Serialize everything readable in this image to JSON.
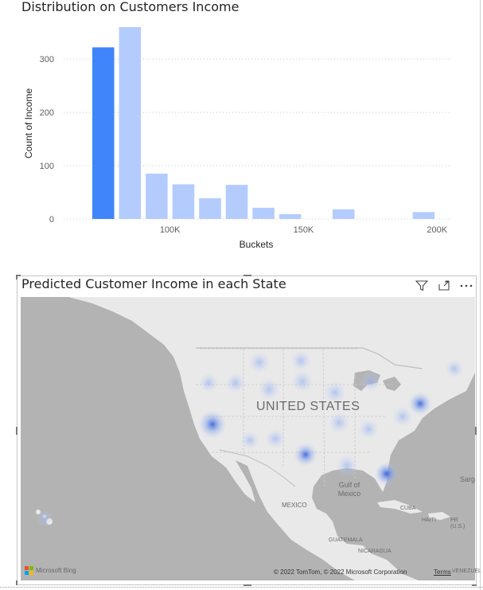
{
  "histogram": {
    "title": "Distribution on Customers Income",
    "xlabel": "Buckets",
    "ylabel": "Count of Income"
  },
  "chart_data": {
    "type": "bar",
    "title": "Distribution on Customers Income",
    "xlabel": "Buckets",
    "ylabel": "Count of Income",
    "x_start": 70000,
    "x_end": 205000,
    "bucket_width": 10000,
    "bins": [
      {
        "start": 70000,
        "value": 322,
        "highlighted": true
      },
      {
        "start": 80000,
        "value": 360,
        "highlighted": false
      },
      {
        "start": 90000,
        "value": 85,
        "highlighted": false
      },
      {
        "start": 100000,
        "value": 65,
        "highlighted": false
      },
      {
        "start": 110000,
        "value": 39,
        "highlighted": false
      },
      {
        "start": 120000,
        "value": 64,
        "highlighted": false
      },
      {
        "start": 130000,
        "value": 21,
        "highlighted": false
      },
      {
        "start": 140000,
        "value": 9,
        "highlighted": false
      },
      {
        "start": 160000,
        "value": 18,
        "highlighted": false
      },
      {
        "start": 190000,
        "value": 13,
        "highlighted": false
      }
    ],
    "yticks": [
      0,
      100,
      200,
      300
    ],
    "yticklabels": [
      "0",
      "100",
      "200",
      "300"
    ],
    "xticks": [
      {
        "value": 100000,
        "label": "100K"
      },
      {
        "value": 150000,
        "label": "150K"
      },
      {
        "value": 200000,
        "label": "200K"
      }
    ],
    "ylim": [
      0,
      360
    ],
    "grid": true,
    "colors": {
      "highlight": "#4185fb",
      "normal": "#b4ccfd"
    }
  },
  "map": {
    "title": "Predicted Customer Income in each State",
    "labels": {
      "country": "UNITED STATES",
      "gulf": "Gulf of Mexico",
      "mexico": "MEXICO",
      "cuba": "CUBA",
      "haiti": "HAITI",
      "pr": "PR (U.S.)",
      "guatemala": "GUATEMALA",
      "nicaragua": "NICARAGUA",
      "venezuela": "VENEZUEL",
      "sargasso": "Sarg"
    },
    "attribution": "Microsoft Bing",
    "copyright": "© 2022 TomTom, © 2022 Microsoft Corporation",
    "terms": "Terms",
    "icons": [
      "filter-icon",
      "focus-mode-icon",
      "more-options-icon"
    ]
  }
}
